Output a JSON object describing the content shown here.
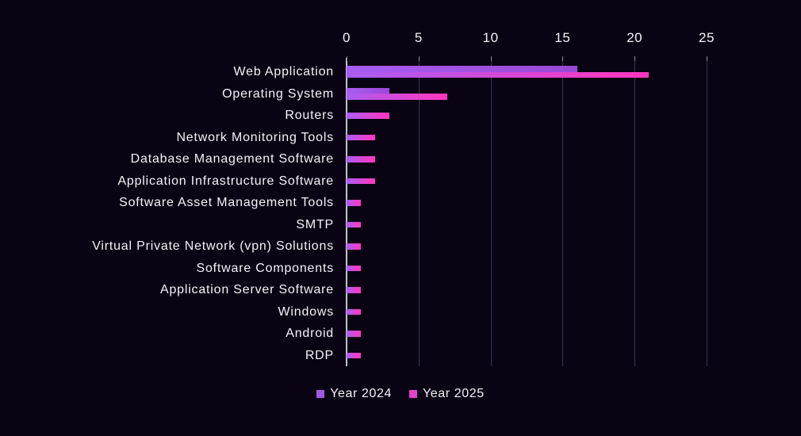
{
  "chart_data": {
    "type": "bar",
    "orientation": "horizontal",
    "title": "",
    "categories": [
      "Web Application",
      "Operating System",
      "Routers",
      "Network Monitoring Tools",
      "Database Management Software",
      "Application Infrastructure Software",
      "Software Asset Management Tools",
      "SMTP",
      "Virtual Private Network (vpn) Solutions",
      "Software Components",
      "Application Server Software",
      "Windows",
      "Android",
      "RDP"
    ],
    "series": [
      {
        "name": "Year 2024",
        "values": [
          16,
          3,
          null,
          null,
          null,
          null,
          null,
          null,
          null,
          null,
          null,
          null,
          null,
          null
        ],
        "gradient_start": "#a85df2",
        "gradient_end": "#9a48d6",
        "legend_color": "#9d59e3"
      },
      {
        "name": "Year 2025",
        "values": [
          21,
          7,
          3,
          2,
          2,
          2,
          1,
          1,
          1,
          1,
          1,
          1,
          1,
          1
        ],
        "gradient_start": "#a85df2",
        "gradient_end": "#ff36bd",
        "legend_color": "#e243cb"
      }
    ],
    "xlim": [
      0,
      25
    ],
    "xticks": [
      0,
      5,
      10,
      15,
      20,
      25
    ],
    "grid": true,
    "legend_position": "bottom"
  },
  "colors": {
    "background": "#0a0314",
    "gridline": "#3a3550",
    "axis_line": "#c2c1ca",
    "tick_mark": "#8a8795",
    "text": "#f5f3f7"
  }
}
